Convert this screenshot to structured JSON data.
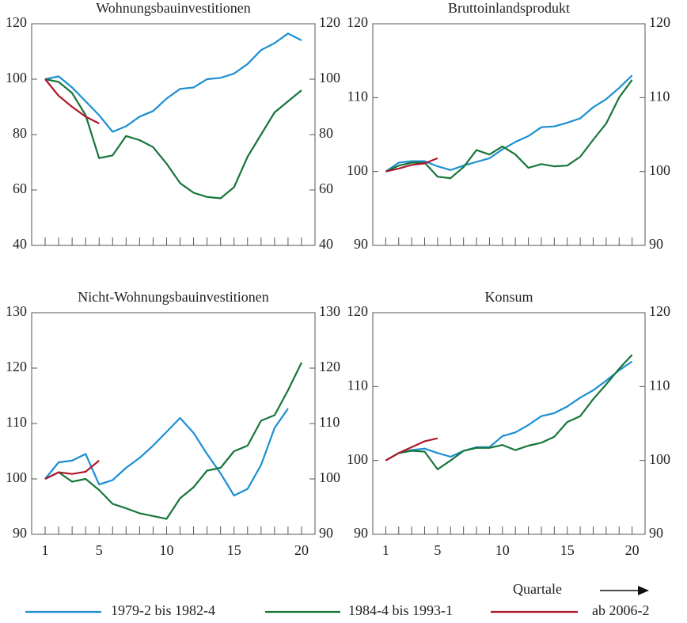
{
  "chart_data": [
    {
      "type": "line",
      "title": "Wohnungsbauinvestitionen",
      "x": [
        1,
        2,
        3,
        4,
        5,
        6,
        7,
        8,
        9,
        10,
        11,
        12,
        13,
        14,
        15,
        16,
        17,
        18,
        19,
        20
      ],
      "xlim": [
        0,
        21
      ],
      "ylim": [
        40,
        120
      ],
      "yticks": [
        40,
        60,
        80,
        100,
        120
      ],
      "y2lim": [
        40,
        120
      ],
      "y2ticks": [
        40,
        60,
        80,
        100,
        120
      ],
      "series": [
        {
          "name": "1979-2 bis 1982-4",
          "color": "#1b8fd2",
          "values": [
            100,
            101,
            97,
            92,
            87,
            81,
            83,
            86.5,
            88.5,
            93,
            96.5,
            97,
            100,
            100.5,
            102,
            105.5,
            110.5,
            113,
            116.5,
            114
          ]
        },
        {
          "name": "1984-4 bis 1993-1",
          "color": "#17753a",
          "values": [
            100,
            99,
            95,
            87,
            71.5,
            72.5,
            79.5,
            78,
            75.5,
            69.5,
            62.5,
            59,
            57.5,
            57,
            61,
            72,
            80,
            88,
            92,
            96
          ]
        },
        {
          "name": "ab 2006-2",
          "color": "#b0182c",
          "values": [
            100,
            94,
            90,
            86.5,
            84,
            null,
            null,
            null,
            null,
            null,
            null,
            null,
            null,
            null,
            null,
            null,
            null,
            null,
            null,
            null
          ]
        }
      ]
    },
    {
      "type": "line",
      "title": "Bruttoinlandsprodukt",
      "x": [
        1,
        2,
        3,
        4,
        5,
        6,
        7,
        8,
        9,
        10,
        11,
        12,
        13,
        14,
        15,
        16,
        17,
        18,
        19,
        20
      ],
      "xlim": [
        0,
        21
      ],
      "ylim": [
        90,
        120
      ],
      "yticks": [
        90,
        100,
        110,
        120
      ],
      "y2lim": [
        90,
        120
      ],
      "y2ticks": [
        90,
        100,
        110,
        120
      ],
      "series": [
        {
          "name": "1979-2 bis 1982-4",
          "color": "#1b8fd2",
          "values": [
            100,
            101.2,
            101.4,
            101.4,
            100.7,
            100.2,
            100.8,
            101.3,
            101.8,
            103,
            104,
            104.8,
            106,
            106.1,
            106.6,
            107.2,
            108.7,
            109.8,
            111.3,
            113
          ]
        },
        {
          "name": "1984-4 bis 1993-1",
          "color": "#17753a",
          "values": [
            100,
            100.8,
            101.2,
            101.2,
            99.3,
            99.1,
            100.6,
            102.9,
            102.3,
            103.4,
            102.3,
            100.5,
            101,
            100.7,
            100.8,
            102,
            104.3,
            106.5,
            110,
            112.4
          ]
        },
        {
          "name": "ab 2006-2",
          "color": "#b0182c",
          "values": [
            100,
            100.4,
            100.9,
            101.1,
            101.8,
            null,
            null,
            null,
            null,
            null,
            null,
            null,
            null,
            null,
            null,
            null,
            null,
            null,
            null,
            null
          ]
        }
      ]
    },
    {
      "type": "line",
      "title": "Nicht-Wohnungsbauinvestitionen",
      "x": [
        1,
        2,
        3,
        4,
        5,
        6,
        7,
        8,
        9,
        10,
        11,
        12,
        13,
        14,
        15,
        16,
        17,
        18,
        19,
        20
      ],
      "xlim": [
        0,
        21
      ],
      "xticks": [
        1,
        5,
        10,
        15,
        20
      ],
      "ylim": [
        90,
        130
      ],
      "yticks": [
        90,
        100,
        110,
        120,
        130
      ],
      "y2lim": [
        90,
        130
      ],
      "y2ticks": [
        90,
        100,
        110,
        120,
        130
      ],
      "series": [
        {
          "name": "1979-2 bis 1982-4",
          "color": "#1b8fd2",
          "values": [
            100,
            103,
            103.3,
            104.5,
            99,
            99.8,
            102,
            103.8,
            106,
            108.5,
            111,
            108.3,
            104.5,
            101,
            97,
            98.2,
            102.5,
            109.2,
            112.7,
            null
          ]
        },
        {
          "name": "1984-4 bis 1993-1",
          "color": "#17753a",
          "values": [
            100,
            101.2,
            99.5,
            100,
            98,
            95.5,
            94.7,
            93.8,
            93.3,
            92.8,
            96.5,
            98.5,
            101.5,
            102,
            105,
            106,
            110.5,
            111.5,
            116,
            121
          ]
        },
        {
          "name": "ab 2006-2",
          "color": "#b0182c",
          "values": [
            100,
            101.2,
            100.9,
            101.3,
            103.3,
            null,
            null,
            null,
            null,
            null,
            null,
            null,
            null,
            null,
            null,
            null,
            null,
            null,
            null,
            null
          ]
        }
      ]
    },
    {
      "type": "line",
      "title": "Konsum",
      "x": [
        1,
        2,
        3,
        4,
        5,
        6,
        7,
        8,
        9,
        10,
        11,
        12,
        13,
        14,
        15,
        16,
        17,
        18,
        19,
        20
      ],
      "xlim": [
        0,
        21
      ],
      "xticks": [
        1,
        5,
        10,
        15,
        20
      ],
      "xlabel": "Quartale",
      "ylim": [
        90,
        120
      ],
      "yticks": [
        90,
        100,
        110,
        120
      ],
      "y2lim": [
        90,
        120
      ],
      "y2ticks": [
        90,
        100,
        110,
        120
      ],
      "series": [
        {
          "name": "1979-2 bis 1982-4",
          "color": "#1b8fd2",
          "values": [
            100,
            101,
            101.4,
            101.6,
            101,
            100.5,
            101.3,
            101.8,
            101.8,
            103.3,
            103.8,
            104.8,
            106,
            106.4,
            107.3,
            108.5,
            109.5,
            110.8,
            112.2,
            113.4
          ]
        },
        {
          "name": "1984-4 bis 1993-1",
          "color": "#17753a",
          "values": [
            100,
            101,
            101.3,
            101.2,
            98.8,
            100,
            101.3,
            101.7,
            101.7,
            102.1,
            101.4,
            102,
            102.4,
            103.2,
            105.2,
            106,
            108.3,
            110.3,
            112.4,
            114.3
          ]
        },
        {
          "name": "ab 2006-2",
          "color": "#b0182c",
          "values": [
            100,
            101,
            101.8,
            102.6,
            103,
            null,
            null,
            null,
            null,
            null,
            null,
            null,
            null,
            null,
            null,
            null,
            null,
            null,
            null,
            null
          ]
        }
      ]
    }
  ]
}
